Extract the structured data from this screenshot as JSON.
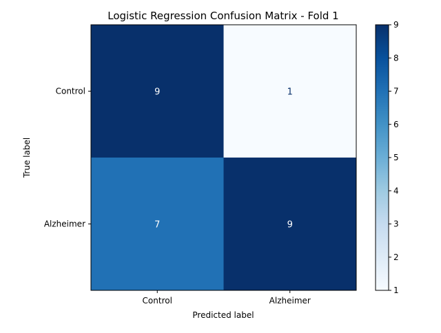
{
  "chart_data": {
    "type": "heatmap",
    "title": "Logistic Regression Confusion Matrix - Fold 1",
    "xlabel": "Predicted label",
    "ylabel": "True label",
    "row_labels": [
      "Control",
      "Alzheimer"
    ],
    "col_labels": [
      "Control",
      "Alzheimer"
    ],
    "values": [
      [
        9,
        1
      ],
      [
        7,
        9
      ]
    ],
    "colormap": "Blues",
    "color_range": [
      1,
      9
    ],
    "colorbar_ticks": [
      1,
      2,
      3,
      4,
      5,
      6,
      7,
      8,
      9
    ],
    "grid": false
  }
}
